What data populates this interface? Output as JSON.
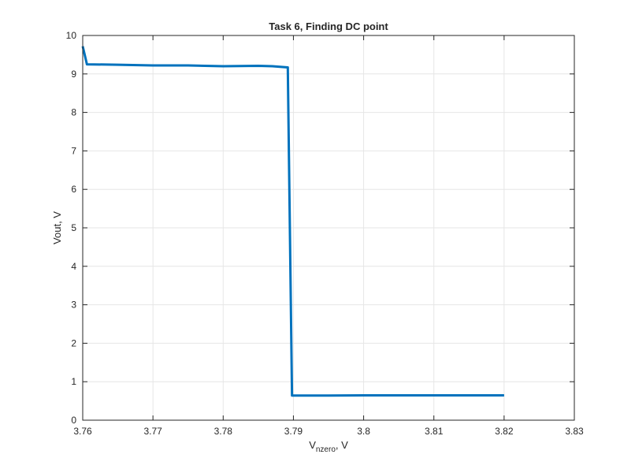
{
  "chart_data": {
    "type": "line",
    "title": "Task 6, Finding DC point",
    "xlabel": {
      "main": "V",
      "subscript": "nzero",
      "suffix": ", V"
    },
    "ylabel": "Vout, V",
    "xlim": [
      3.76,
      3.83
    ],
    "ylim": [
      0,
      10
    ],
    "xticks": [
      3.76,
      3.77,
      3.78,
      3.79,
      3.8,
      3.81,
      3.82,
      3.83
    ],
    "xtick_labels": [
      "3.76",
      "3.77",
      "3.78",
      "3.79",
      "3.8",
      "3.81",
      "3.82",
      "3.83"
    ],
    "yticks": [
      0,
      1,
      2,
      3,
      4,
      5,
      6,
      7,
      8,
      9,
      10
    ],
    "ytick_labels": [
      "0",
      "1",
      "2",
      "3",
      "4",
      "5",
      "6",
      "7",
      "8",
      "9",
      "10"
    ],
    "grid": true,
    "colors": {
      "series": "#0072BD",
      "grid": "#e6e6e6",
      "axes": "#262626"
    },
    "series": [
      {
        "x": [
          3.76,
          3.7606,
          3.765,
          3.77,
          3.775,
          3.78,
          3.785,
          3.787,
          3.7892,
          3.7898,
          3.795,
          3.8,
          3.805,
          3.81,
          3.815,
          3.82
        ],
        "y": [
          9.72,
          9.25,
          9.24,
          9.22,
          9.22,
          9.2,
          9.21,
          9.2,
          9.17,
          0.64,
          0.64,
          0.645,
          0.645,
          0.645,
          0.645,
          0.645
        ]
      }
    ]
  }
}
